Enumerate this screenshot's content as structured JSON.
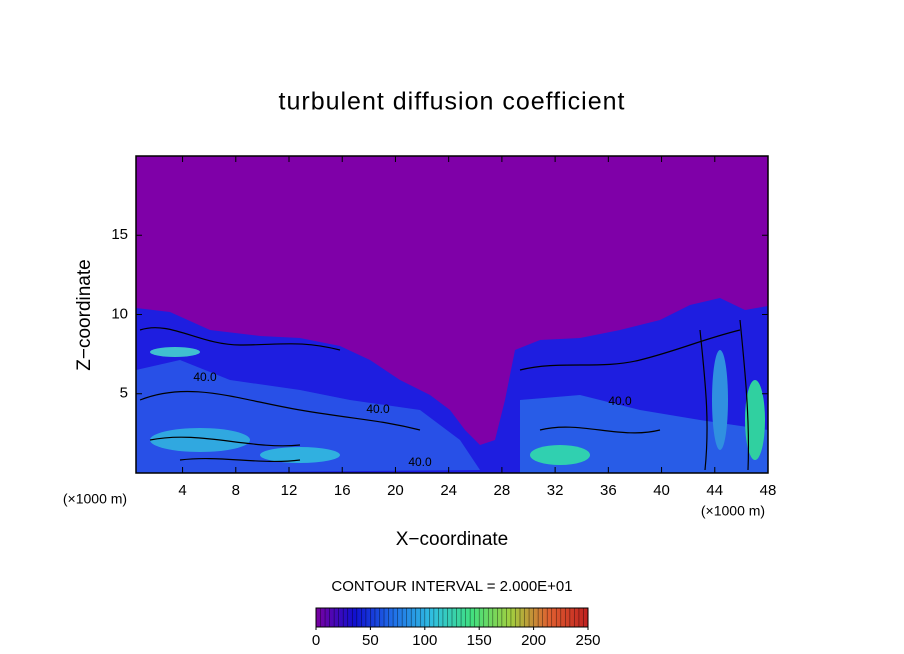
{
  "chart_data": {
    "type": "contour",
    "title": "turbulent diffusion coefficient",
    "xlabel": "X−coordinate",
    "ylabel": "Z−coordinate",
    "x_unit": "(×1000 m)",
    "xlim": [
      0.5,
      48
    ],
    "xticks": [
      4,
      8,
      12,
      16,
      20,
      24,
      28,
      32,
      36,
      40,
      44,
      48
    ],
    "ylim": [
      0,
      20
    ],
    "yticks": [
      5,
      10,
      15
    ],
    "contour_labels": [
      "40.0",
      "40.0",
      "40.0",
      "40.0"
    ],
    "colorbar": {
      "label": "CONTOUR INTERVAL = 2.000E+01",
      "lim": [
        0,
        250
      ],
      "ticks": [
        0,
        50,
        100,
        150,
        200,
        250
      ],
      "colors": [
        "#7a00a0",
        "#1010d0",
        "#2070e8",
        "#30c0e0",
        "#40e080",
        "#a0d040",
        "#e06030",
        "#c02020"
      ]
    }
  }
}
